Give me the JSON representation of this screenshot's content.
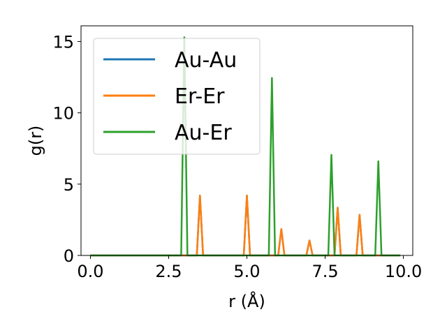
{
  "chart_data": {
    "type": "line",
    "title": "",
    "xlabel": "r (Å)",
    "ylabel": "g(r)",
    "xlim": [
      -0.3,
      10.3
    ],
    "ylim": [
      0,
      16.1
    ],
    "xticks": [
      0.0,
      2.5,
      5.0,
      7.5,
      10.0
    ],
    "xtick_labels": [
      "0.0",
      "2.5",
      "5.0",
      "7.5",
      "10.0"
    ],
    "yticks": [
      0,
      5,
      10,
      15
    ],
    "ytick_labels": [
      "0",
      "5",
      "10",
      "15"
    ],
    "grid": false,
    "legend_position": "top-left",
    "r_max": 9.9,
    "series": [
      {
        "name": "Au-Au",
        "color": "#1f77b4",
        "peaks": [
          [
            3.5,
            4.2
          ],
          [
            5.0,
            4.2
          ],
          [
            6.1,
            1.85
          ],
          [
            7.0,
            1.05
          ],
          [
            7.9,
            3.35
          ],
          [
            8.6,
            2.85
          ]
        ]
      },
      {
        "name": "Er-Er",
        "color": "#ff7f0e",
        "peaks": [
          [
            3.5,
            4.2
          ],
          [
            5.0,
            4.2
          ],
          [
            6.1,
            1.85
          ],
          [
            7.0,
            1.05
          ],
          [
            7.9,
            3.35
          ],
          [
            8.6,
            2.85
          ]
        ]
      },
      {
        "name": "Au-Er",
        "color": "#2ca02c",
        "peaks": [
          [
            3.0,
            15.3
          ],
          [
            5.8,
            12.45
          ],
          [
            7.7,
            7.05
          ],
          [
            9.2,
            6.6
          ]
        ]
      }
    ]
  }
}
